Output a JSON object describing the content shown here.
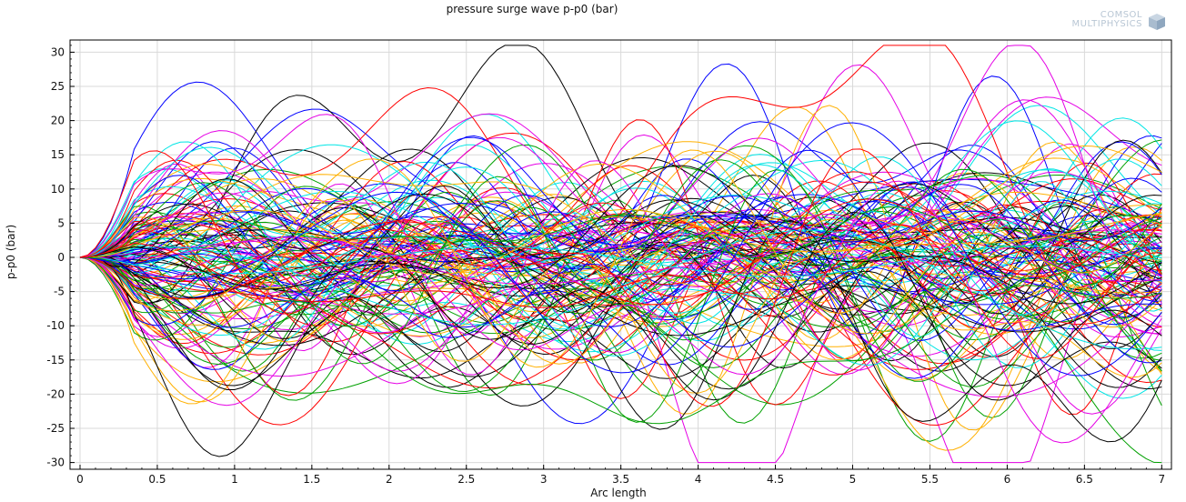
{
  "chart_data": {
    "type": "line",
    "title": "pressure surge wave p-p0 (bar)",
    "xlabel": "Arc length",
    "ylabel": "p-p0 (bar)",
    "xlim": [
      0,
      7
    ],
    "ylim": [
      -31,
      32
    ],
    "x_ticks": [
      "0",
      "0.5",
      "1",
      "1.5",
      "2",
      "2.5",
      "3",
      "3.5",
      "4",
      "4.5",
      "5",
      "5.5",
      "6",
      "6.5",
      "7"
    ],
    "y_ticks": [
      "30",
      "25",
      "20",
      "15",
      "10",
      "5",
      "0",
      "-5",
      "-10",
      "-15",
      "-20",
      "-25",
      "-30"
    ],
    "grid": true,
    "series_count": 150,
    "line_colors": [
      "#0000ff",
      "#00a000",
      "#ff0000",
      "#00e5e5",
      "#e500e5",
      "#ffb000",
      "#000000"
    ],
    "y_range_observed": [
      -30,
      31
    ],
    "y_at_origin": 0
  },
  "logo": {
    "line1": "COMSOL",
    "line2": "MULTIPHYSICS"
  },
  "colors": {
    "grid": "#d9d9d9",
    "axis": "#000000",
    "logo": "#b8c6d4"
  }
}
